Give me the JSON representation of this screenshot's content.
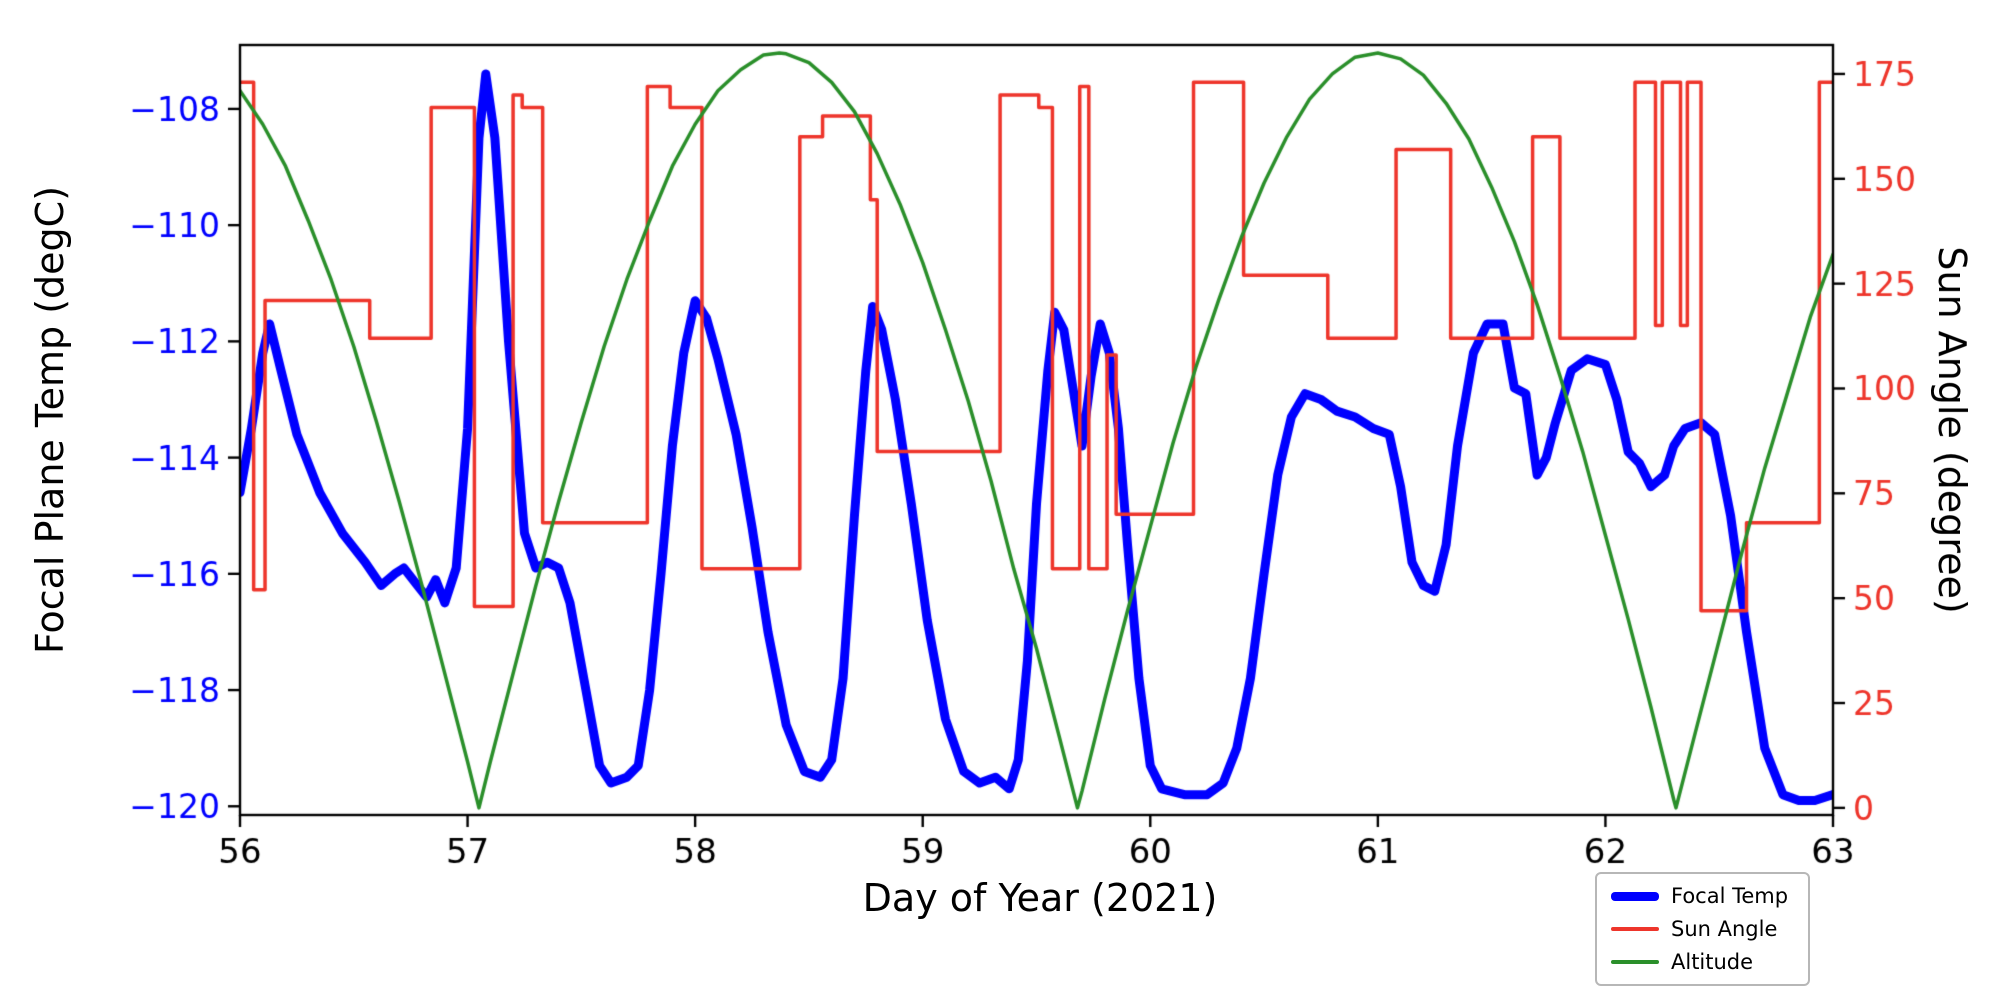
{
  "chart_data": {
    "type": "line",
    "title": "",
    "xlabel": "Day of Year (2021)",
    "ylabel_left": "Focal Plane Temp (degC)",
    "ylabel_right": "Sun Angle (degree)",
    "xlim": [
      56,
      63
    ],
    "ylim_left": [
      -120.15,
      -106.9
    ],
    "ylim_right": [
      -1.7,
      181.9
    ],
    "grid": false,
    "legend_position": "lower right",
    "axis_color": "#000000",
    "left_axis_color": "#0000ff",
    "right_axis_color": "#ee352b",
    "x_ticks": [
      56,
      57,
      58,
      59,
      60,
      61,
      62,
      63
    ],
    "x_tick_labels": [
      "56",
      "57",
      "58",
      "59",
      "60",
      "61",
      "62",
      "63"
    ],
    "left_ticks": [
      -108,
      -110,
      -112,
      -114,
      -116,
      -118,
      -120
    ],
    "left_tick_labels": [
      "−108",
      "−110",
      "−112",
      "−114",
      "−116",
      "−118",
      "−120"
    ],
    "right_ticks": [
      0,
      25,
      50,
      75,
      100,
      125,
      150,
      175
    ],
    "right_tick_labels": [
      "0",
      "25",
      "50",
      "75",
      "100",
      "125",
      "150",
      "175"
    ],
    "series": [
      {
        "name": "Focal Temp",
        "color": "#0000ff",
        "width": 9,
        "axis": "left",
        "x": [
          56.0,
          56.05,
          56.1,
          56.13,
          56.18,
          56.25,
          56.35,
          56.45,
          56.55,
          56.62,
          56.68,
          56.72,
          56.78,
          56.82,
          56.86,
          56.9,
          56.95,
          57.0,
          57.05,
          57.08,
          57.12,
          57.18,
          57.25,
          57.3,
          57.35,
          57.4,
          57.45,
          57.52,
          57.58,
          57.63,
          57.7,
          57.75,
          57.8,
          57.85,
          57.9,
          57.95,
          58.0,
          58.05,
          58.1,
          58.18,
          58.25,
          58.32,
          58.4,
          58.48,
          58.55,
          58.6,
          58.65,
          58.7,
          58.75,
          58.78,
          58.82,
          58.88,
          58.95,
          59.02,
          59.1,
          59.18,
          59.25,
          59.32,
          59.38,
          59.42,
          59.46,
          59.5,
          59.55,
          59.58,
          59.62,
          59.66,
          59.7,
          59.74,
          59.78,
          59.82,
          59.86,
          59.9,
          59.95,
          60.0,
          60.05,
          60.15,
          60.25,
          60.32,
          60.38,
          60.44,
          60.5,
          60.56,
          60.62,
          60.68,
          60.75,
          60.82,
          60.9,
          60.98,
          61.05,
          61.1,
          61.15,
          61.2,
          61.25,
          61.3,
          61.35,
          61.42,
          61.48,
          61.55,
          61.6,
          61.65,
          61.7,
          61.74,
          61.78,
          61.85,
          61.92,
          62.0,
          62.05,
          62.1,
          62.15,
          62.2,
          62.26,
          62.3,
          62.35,
          62.42,
          62.48,
          62.55,
          62.62,
          62.7,
          62.78,
          62.85,
          62.92,
          63.0
        ],
        "y": [
          -114.6,
          -113.5,
          -112.2,
          -111.7,
          -112.5,
          -113.6,
          -114.6,
          -115.3,
          -115.8,
          -116.2,
          -116.0,
          -115.9,
          -116.2,
          -116.4,
          -116.1,
          -116.5,
          -115.9,
          -113.5,
          -108.5,
          -107.4,
          -108.5,
          -112.0,
          -115.3,
          -115.9,
          -115.8,
          -115.9,
          -116.5,
          -118.0,
          -119.3,
          -119.6,
          -119.5,
          -119.3,
          -118.0,
          -116.0,
          -113.8,
          -112.2,
          -111.3,
          -111.6,
          -112.3,
          -113.6,
          -115.2,
          -117.0,
          -118.6,
          -119.4,
          -119.5,
          -119.2,
          -117.8,
          -115.0,
          -112.5,
          -111.4,
          -111.8,
          -113.0,
          -114.8,
          -116.8,
          -118.5,
          -119.4,
          -119.6,
          -119.5,
          -119.7,
          -119.2,
          -117.5,
          -114.8,
          -112.5,
          -111.5,
          -111.8,
          -112.8,
          -113.8,
          -112.6,
          -111.7,
          -112.2,
          -113.5,
          -115.5,
          -117.8,
          -119.3,
          -119.7,
          -119.8,
          -119.8,
          -119.6,
          -119.0,
          -117.8,
          -116.0,
          -114.3,
          -113.3,
          -112.9,
          -113.0,
          -113.2,
          -113.3,
          -113.5,
          -113.6,
          -114.5,
          -115.8,
          -116.2,
          -116.3,
          -115.5,
          -113.8,
          -112.2,
          -111.7,
          -111.7,
          -112.8,
          -112.9,
          -114.3,
          -114.0,
          -113.4,
          -112.5,
          -112.3,
          -112.4,
          -113.0,
          -113.9,
          -114.1,
          -114.5,
          -114.3,
          -113.8,
          -113.5,
          -113.4,
          -113.6,
          -115.0,
          -117.0,
          -119.0,
          -119.8,
          -119.9,
          -119.9,
          -119.8
        ]
      },
      {
        "name": "Sun Angle",
        "color": "#ee352b",
        "width": 3.5,
        "axis": "right",
        "x": [
          56.0,
          56.06,
          56.06,
          56.11,
          56.11,
          56.57,
          56.57,
          56.84,
          56.84,
          57.03,
          57.03,
          57.2,
          57.2,
          57.24,
          57.24,
          57.33,
          57.33,
          57.79,
          57.79,
          57.89,
          57.89,
          58.03,
          58.03,
          58.46,
          58.46,
          58.56,
          58.56,
          58.77,
          58.77,
          58.8,
          58.8,
          59.34,
          59.34,
          59.51,
          59.51,
          59.57,
          59.57,
          59.69,
          59.69,
          59.73,
          59.73,
          59.81,
          59.81,
          59.85,
          59.85,
          60.19,
          60.19,
          60.41,
          60.41,
          60.78,
          60.78,
          61.08,
          61.08,
          61.32,
          61.32,
          61.68,
          61.68,
          61.8,
          61.8,
          62.13,
          62.13,
          62.22,
          62.22,
          62.25,
          62.25,
          62.33,
          62.33,
          62.36,
          62.36,
          62.42,
          62.42,
          62.62,
          62.62,
          62.94,
          62.94,
          63.0
        ],
        "y": [
          173,
          173,
          52,
          52,
          121,
          121,
          112,
          112,
          167,
          167,
          48,
          48,
          170,
          170,
          167,
          167,
          68,
          68,
          172,
          172,
          167,
          167,
          57,
          57,
          160,
          160,
          165,
          165,
          145,
          145,
          85,
          85,
          170,
          170,
          167,
          167,
          57,
          57,
          172,
          172,
          57,
          57,
          108,
          108,
          70,
          70,
          173,
          173,
          127,
          127,
          112,
          112,
          157,
          157,
          112,
          112,
          160,
          160,
          112,
          112,
          173,
          173,
          115,
          115,
          173,
          173,
          115,
          115,
          173,
          173,
          47,
          47,
          68,
          68,
          173,
          173
        ]
      },
      {
        "name": "Altitude",
        "color": "#2a8f2a",
        "width": 3.5,
        "axis": "right",
        "x": [
          56.0,
          56.1,
          56.2,
          56.3,
          56.4,
          56.5,
          56.6,
          56.7,
          56.8,
          56.9,
          57.0,
          57.05,
          57.1,
          57.2,
          57.3,
          57.4,
          57.5,
          57.6,
          57.7,
          57.8,
          57.9,
          58.0,
          58.1,
          58.2,
          58.3,
          58.37,
          58.4,
          58.5,
          58.6,
          58.7,
          58.8,
          58.9,
          59.0,
          59.1,
          59.2,
          59.3,
          59.4,
          59.5,
          59.6,
          59.68,
          59.7,
          59.8,
          59.9,
          60.0,
          60.1,
          60.2,
          60.3,
          60.4,
          60.5,
          60.6,
          60.7,
          60.8,
          60.9,
          61.0,
          61.1,
          61.2,
          61.3,
          61.4,
          61.5,
          61.6,
          61.7,
          61.8,
          61.9,
          62.0,
          62.1,
          62.2,
          62.3,
          62.31,
          62.4,
          62.5,
          62.6,
          62.7,
          62.8,
          62.9,
          63.0
        ],
        "y": [
          171,
          163,
          153,
          140,
          126,
          110,
          92,
          73,
          53,
          32,
          11,
          0,
          11,
          32,
          53,
          73,
          92,
          110,
          126,
          140,
          153,
          163,
          171,
          176,
          179.5,
          180,
          179.8,
          177.7,
          173,
          166,
          156,
          144,
          130,
          114,
          97,
          78,
          57,
          38,
          17,
          0,
          4,
          26,
          47,
          67,
          87,
          105,
          121,
          136,
          149,
          160,
          169,
          175,
          179,
          180,
          178.6,
          174.7,
          168,
          159.5,
          148,
          135,
          120,
          103,
          85,
          65,
          45,
          24,
          2,
          0,
          19,
          40,
          61,
          81,
          99,
          117,
          132
        ]
      }
    ]
  },
  "legend": {
    "items": [
      {
        "label": "Focal Temp"
      },
      {
        "label": "Sun Angle"
      },
      {
        "label": "Altitude"
      }
    ]
  }
}
